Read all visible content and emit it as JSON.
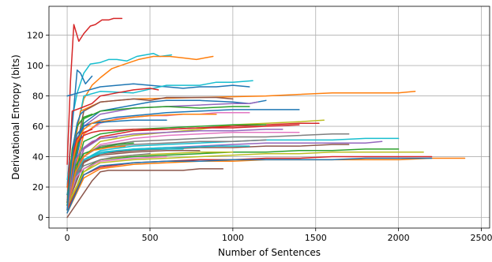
{
  "chart_data": {
    "type": "line",
    "title": "",
    "xlabel": "Number of Sentences",
    "ylabel": "Derivational Entropy (bits)",
    "xlim": [
      -110,
      2550
    ],
    "ylim": [
      -7,
      139
    ],
    "x_ticks": [
      0,
      500,
      1000,
      1500,
      2000,
      2500
    ],
    "y_ticks": [
      0,
      20,
      40,
      60,
      80,
      100,
      120
    ],
    "grid": true,
    "legend": "none",
    "colors": [
      "#1f77b4",
      "#ff7f0e",
      "#2ca02c",
      "#d62728",
      "#9467bd",
      "#8c564b",
      "#e377c2",
      "#7f7f7f",
      "#bcbd22",
      "#17becf"
    ],
    "series": [
      {
        "color": "#d62728",
        "x": [
          0,
          20,
          40,
          70,
          100,
          140,
          170,
          210,
          250,
          280,
          310,
          330
        ],
        "y": [
          35,
          90,
          127,
          116,
          121,
          126,
          127,
          130,
          130,
          131,
          131,
          131
        ]
      },
      {
        "color": "#17becf",
        "x": [
          0,
          30,
          60,
          100,
          140,
          200,
          250,
          300,
          360,
          420,
          470,
          520,
          560,
          630
        ],
        "y": [
          20,
          65,
          82,
          95,
          101,
          102,
          104,
          104,
          103,
          106,
          107,
          108,
          106,
          107
        ]
      },
      {
        "color": "#ff7f0e",
        "x": [
          0,
          50,
          100,
          150,
          200,
          270,
          350,
          430,
          520,
          620,
          700,
          780,
          830,
          880
        ],
        "y": [
          20,
          55,
          78,
          87,
          92,
          98,
          101,
          104,
          106,
          106,
          105,
          104,
          105,
          106
        ]
      },
      {
        "color": "#1f77b4",
        "x": [
          0,
          30,
          60,
          80,
          110,
          150
        ],
        "y": [
          20,
          60,
          97,
          95,
          88,
          93
        ]
      },
      {
        "color": "#1f77b4",
        "x": [
          0,
          100,
          200,
          300,
          400,
          500,
          600,
          700,
          800,
          900,
          1000,
          1100
        ],
        "y": [
          80,
          83,
          86,
          87,
          88,
          87,
          86,
          85,
          86,
          86,
          87,
          86
        ]
      },
      {
        "color": "#17becf",
        "x": [
          0,
          100,
          200,
          400,
          600,
          800,
          900,
          1000,
          1120
        ],
        "y": [
          25,
          80,
          83,
          82,
          87,
          87,
          89,
          89,
          90
        ]
      },
      {
        "color": "#ff7f0e",
        "x": [
          0,
          80,
          200,
          400,
          800,
          1200,
          1400,
          1600,
          1800,
          2000,
          2100
        ],
        "y": [
          20,
          70,
          76,
          78,
          79,
          80,
          81,
          82,
          82,
          82,
          83
        ]
      },
      {
        "color": "#d62728",
        "x": [
          0,
          30,
          80,
          150,
          200,
          300,
          400,
          500,
          550
        ],
        "y": [
          10,
          70,
          72,
          75,
          80,
          82,
          84,
          85,
          84
        ]
      },
      {
        "color": "#1f77b4",
        "x": [
          0,
          100,
          200,
          400,
          500,
          600,
          800,
          1000,
          1100,
          1200
        ],
        "y": [
          10,
          62,
          70,
          74,
          76,
          77,
          77,
          76,
          75,
          77
        ]
      },
      {
        "color": "#8c564b",
        "x": [
          0,
          100,
          200,
          300,
          400,
          500,
          600,
          700,
          800,
          900,
          1000
        ],
        "y": [
          15,
          70,
          76,
          77,
          78,
          77,
          79,
          79,
          79,
          79,
          78
        ]
      },
      {
        "color": "#9467bd",
        "x": [
          0,
          100,
          200,
          400,
          600,
          800,
          1000,
          1100,
          1150
        ],
        "y": [
          15,
          60,
          68,
          72,
          73,
          74,
          75,
          75,
          76
        ]
      },
      {
        "color": "#2ca02c",
        "x": [
          0,
          100,
          200,
          400,
          600,
          800,
          1000,
          1100
        ],
        "y": [
          15,
          65,
          70,
          72,
          73,
          72,
          73,
          73
        ]
      },
      {
        "color": "#1f77b4",
        "x": [
          0,
          100,
          200,
          300,
          400,
          500,
          600,
          800,
          1000,
          1200,
          1400
        ],
        "y": [
          15,
          60,
          64,
          66,
          67,
          68,
          69,
          70,
          71,
          71,
          71
        ]
      },
      {
        "color": "#e377c2",
        "x": [
          0,
          100,
          200,
          300,
          400,
          500,
          600,
          700,
          800,
          900,
          1000,
          1100
        ],
        "y": [
          10,
          55,
          62,
          65,
          66,
          67,
          67,
          68,
          68,
          69,
          69,
          69
        ]
      },
      {
        "color": "#bcbd22",
        "x": [
          0,
          100,
          200,
          400,
          600,
          800,
          1000,
          1200,
          1400,
          1550
        ],
        "y": [
          8,
          40,
          50,
          54,
          56,
          58,
          61,
          62,
          63,
          64
        ]
      },
      {
        "color": "#d62728",
        "x": [
          0,
          100,
          200,
          400,
          600,
          800,
          1000,
          1200,
          1400,
          1520
        ],
        "y": [
          8,
          45,
          53,
          57,
          58,
          59,
          60,
          61,
          62,
          62
        ]
      },
      {
        "color": "#7f7f7f",
        "x": [
          0,
          100,
          200,
          400,
          600,
          800,
          1000,
          1200,
          1400,
          1600,
          1700
        ],
        "y": [
          8,
          40,
          47,
          50,
          51,
          52,
          53,
          53,
          54,
          55,
          55
        ]
      },
      {
        "color": "#17becf",
        "x": [
          0,
          100,
          200,
          400,
          600,
          800,
          1000,
          1200,
          1400,
          1600,
          1800,
          2000
        ],
        "y": [
          8,
          38,
          44,
          47,
          48,
          49,
          50,
          51,
          51,
          51,
          52,
          52
        ]
      },
      {
        "color": "#9467bd",
        "x": [
          0,
          100,
          200,
          400,
          600,
          800,
          1000,
          1200,
          1400,
          1600,
          1800,
          1900
        ],
        "y": [
          8,
          38,
          42,
          45,
          46,
          47,
          48,
          49,
          49,
          49,
          49,
          50
        ]
      },
      {
        "color": "#8c564b",
        "x": [
          0,
          100,
          200,
          400,
          600,
          800,
          1000,
          1200,
          1400,
          1600,
          1700
        ],
        "y": [
          8,
          36,
          42,
          44,
          45,
          46,
          46,
          47,
          47,
          48,
          48
        ]
      },
      {
        "color": "#2ca02c",
        "x": [
          0,
          100,
          200,
          400,
          600,
          800,
          1000,
          1200,
          1400,
          1600,
          1800,
          2000
        ],
        "y": [
          5,
          32,
          38,
          40,
          41,
          42,
          43,
          43,
          44,
          44,
          45,
          45
        ]
      },
      {
        "color": "#bcbd22",
        "x": [
          0,
          100,
          200,
          400,
          600,
          800,
          1000,
          1200,
          1400,
          1600,
          1800,
          2000,
          2150
        ],
        "y": [
          5,
          30,
          36,
          38,
          39,
          40,
          41,
          42,
          42,
          43,
          43,
          43,
          43
        ]
      },
      {
        "color": "#d62728",
        "x": [
          0,
          100,
          200,
          400,
          600,
          800,
          1000,
          1200,
          1400,
          1600,
          1800,
          2000,
          2200
        ],
        "y": [
          5,
          28,
          33,
          36,
          37,
          38,
          38,
          39,
          39,
          40,
          40,
          40,
          40
        ]
      },
      {
        "color": "#ff7f0e",
        "x": [
          0,
          100,
          200,
          400,
          600,
          800,
          1000,
          1200,
          1400,
          1600,
          1800,
          2000,
          2200,
          2400
        ],
        "y": [
          3,
          26,
          32,
          35,
          36,
          37,
          37,
          38,
          38,
          38,
          38,
          38,
          39,
          39
        ]
      },
      {
        "color": "#1f77b4",
        "x": [
          0,
          100,
          200,
          400,
          600,
          800,
          1000,
          1200,
          1400,
          1600,
          1800,
          2000,
          2200
        ],
        "y": [
          3,
          28,
          34,
          36,
          37,
          37,
          38,
          38,
          38,
          38,
          39,
          39,
          39
        ]
      },
      {
        "color": "#8c564b",
        "x": [
          0,
          50,
          100,
          150,
          200,
          250,
          300,
          500,
          700,
          800,
          940
        ],
        "y": [
          0,
          8,
          16,
          24,
          30,
          31,
          31,
          31,
          31,
          32,
          32
        ]
      },
      {
        "color": "#e377c2",
        "x": [
          0,
          100,
          200,
          400,
          600,
          800,
          1000,
          1200,
          1400
        ],
        "y": [
          10,
          40,
          48,
          52,
          54,
          55,
          56,
          56,
          56
        ]
      },
      {
        "color": "#7f7f7f",
        "x": [
          0,
          100,
          200,
          400,
          600,
          800,
          1000,
          1200
        ],
        "y": [
          10,
          42,
          46,
          48,
          49,
          50,
          50,
          51
        ]
      },
      {
        "color": "#17becf",
        "x": [
          0,
          100,
          200,
          400,
          600,
          700,
          900,
          1100
        ],
        "y": [
          12,
          38,
          43,
          45,
          46,
          46,
          47,
          47
        ]
      },
      {
        "color": "#9467bd",
        "x": [
          0,
          100,
          200,
          400,
          600,
          800,
          1000,
          1200,
          1300
        ],
        "y": [
          12,
          45,
          52,
          55,
          56,
          57,
          57,
          58,
          58
        ]
      },
      {
        "color": "#2ca02c",
        "x": [
          0,
          100,
          200,
          400,
          600,
          800,
          1000,
          1200
        ],
        "y": [
          10,
          50,
          55,
          58,
          59,
          60,
          61,
          61
        ]
      },
      {
        "color": "#ff7f0e",
        "x": [
          0,
          100,
          200,
          400,
          500,
          700,
          900
        ],
        "y": [
          10,
          55,
          63,
          66,
          67,
          68,
          68
        ]
      },
      {
        "color": "#1f77b4",
        "x": [
          0,
          50,
          100,
          150,
          250,
          400,
          600
        ],
        "y": [
          10,
          50,
          60,
          62,
          63,
          64,
          64
        ]
      },
      {
        "color": "#d62728",
        "x": [
          0,
          50,
          100,
          150,
          200,
          400,
          600,
          800,
          1000,
          1200,
          1400
        ],
        "y": [
          10,
          48,
          54,
          56,
          57,
          58,
          58,
          59,
          59,
          60,
          61
        ]
      },
      {
        "color": "#bcbd22",
        "x": [
          0,
          100,
          200,
          400,
          600,
          800,
          1000
        ],
        "y": [
          8,
          30,
          38,
          41,
          42,
          43,
          43
        ]
      },
      {
        "color": "#8c564b",
        "x": [
          0,
          50,
          100,
          200,
          400,
          600,
          800
        ],
        "y": [
          8,
          30,
          37,
          41,
          43,
          44,
          44
        ]
      },
      {
        "color": "#e377c2",
        "x": [
          0,
          50,
          100,
          200,
          400,
          600
        ],
        "y": [
          6,
          26,
          32,
          37,
          39,
          40
        ]
      },
      {
        "color": "#17becf",
        "x": [
          0,
          50,
          100,
          200,
          300,
          500,
          700
        ],
        "y": [
          6,
          30,
          38,
          42,
          44,
          45,
          45
        ]
      },
      {
        "color": "#7f7f7f",
        "x": [
          0,
          50,
          100,
          200,
          300,
          400,
          500
        ],
        "y": [
          5,
          28,
          34,
          38,
          40,
          41,
          42
        ]
      },
      {
        "color": "#2ca02c",
        "x": [
          0,
          50,
          100,
          200,
          300,
          400
        ],
        "y": [
          5,
          34,
          42,
          46,
          48,
          49
        ]
      },
      {
        "color": "#ff7f0e",
        "x": [
          0,
          50,
          100,
          150,
          250,
          350
        ],
        "y": [
          5,
          30,
          40,
          44,
          46,
          47
        ]
      },
      {
        "color": "#9467bd",
        "x": [
          0,
          50,
          100,
          150,
          200,
          300
        ],
        "y": [
          5,
          38,
          46,
          50,
          52,
          53
        ]
      },
      {
        "color": "#1f77b4",
        "x": [
          0,
          30,
          60,
          100,
          150,
          200
        ],
        "y": [
          8,
          42,
          55,
          60,
          62,
          63
        ]
      },
      {
        "color": "#d62728",
        "x": [
          0,
          30,
          60,
          100,
          150
        ],
        "y": [
          8,
          40,
          52,
          56,
          58
        ]
      },
      {
        "color": "#2ca02c",
        "x": [
          0,
          30,
          60,
          100,
          150
        ],
        "y": [
          8,
          45,
          60,
          66,
          68
        ]
      },
      {
        "color": "#ff7f0e",
        "x": [
          0,
          30,
          60,
          100,
          150,
          200
        ],
        "y": [
          5,
          35,
          50,
          58,
          62,
          64
        ]
      },
      {
        "color": "#1f77b4",
        "x": [
          0,
          20,
          40,
          60,
          80,
          100
        ],
        "y": [
          5,
          30,
          50,
          62,
          68,
          70
        ]
      }
    ]
  }
}
